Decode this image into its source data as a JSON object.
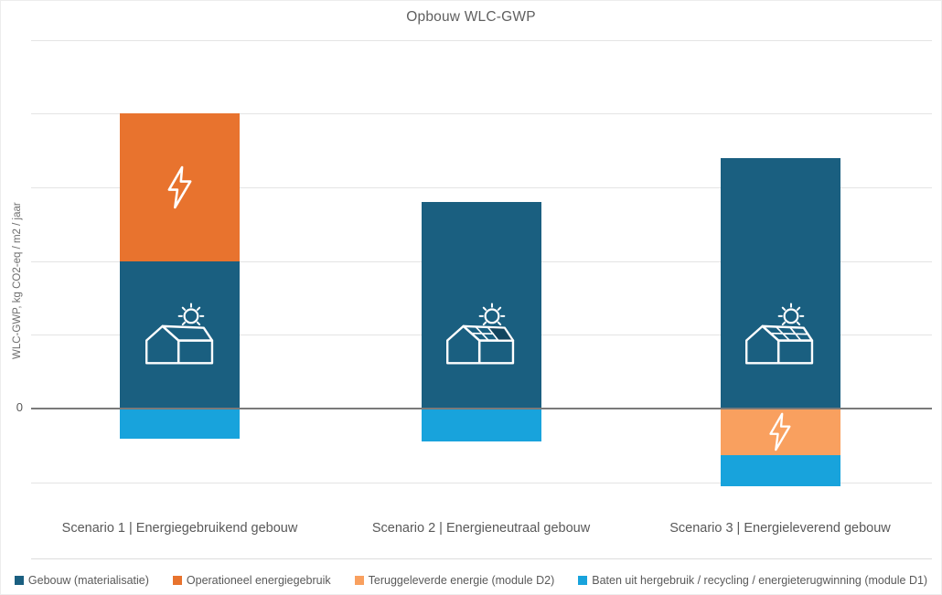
{
  "chart_data": {
    "type": "bar",
    "stacked": true,
    "title": "Opbouw WLC-GWP",
    "ylabel": "WLC-GWP, kg CO2-eq / m2 / jaar",
    "xlabel": "",
    "categories": [
      "Scenario 1 | Energiegebruikend gebouw",
      "Scenario 2 | Energieneutraal gebouw",
      "Scenario 3 | Energieleverend gebouw"
    ],
    "y_axis": {
      "zero_label": "0",
      "units": "gridline divisions (axis has no numeric labels except 0)",
      "ylim": [
        -1.1,
        5
      ],
      "gridlines": [
        -1,
        1,
        2,
        3,
        4,
        5
      ],
      "grid": true
    },
    "legend_position": "bottom",
    "series": [
      {
        "name": "Gebouw (materialisatie)",
        "color": "#1a5f80",
        "values": [
          2.0,
          2.8,
          3.4
        ]
      },
      {
        "name": "Operationeel energiegebruik",
        "color": "#e8732e",
        "values": [
          2.0,
          0,
          0
        ]
      },
      {
        "name": "Teruggeleverde energie (module D2)",
        "color": "#f9a05f",
        "values": [
          0,
          0,
          -0.63
        ]
      },
      {
        "name": "Baten uit hergebruik / recycling / energieterugwinning (module D1)",
        "color": "#18a3dc",
        "values": [
          -0.41,
          -0.45,
          -0.42
        ]
      }
    ],
    "segment_icons": [
      {
        "category": 0,
        "series_index": 1,
        "icon": "lightning-bolt-icon"
      },
      {
        "category": 0,
        "series_index": 0,
        "icon": "house-with-sun-icon"
      },
      {
        "category": 1,
        "series_index": 0,
        "icon": "house-with-partial-solar-roof-icon"
      },
      {
        "category": 2,
        "series_index": 0,
        "icon": "house-with-solar-roof-icon"
      },
      {
        "category": 2,
        "series_index": 2,
        "icon": "lightning-bolt-icon"
      }
    ]
  }
}
